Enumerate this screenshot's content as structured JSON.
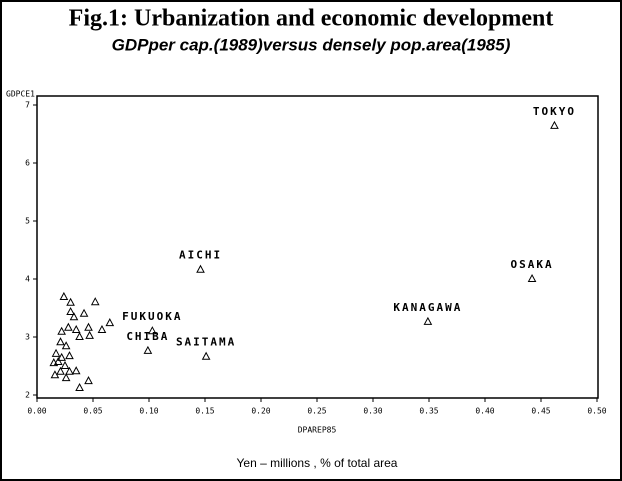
{
  "chart_data": {
    "type": "scatter",
    "title": "Fig.1: Urbanization and economic development",
    "subtitle": "GDPper cap.(1989)versus densely pop.area(1985)",
    "x_label": "DPAREP85",
    "y_label": "GDPCE1",
    "caption": "Yen – millions , % of total area",
    "marker": "triangle",
    "color": "#000000",
    "x": [
      0.462,
      0.442,
      0.349,
      0.146,
      0.151,
      0.099,
      0.103,
      0.024,
      0.03,
      0.052,
      0.03,
      0.033,
      0.042,
      0.065,
      0.058,
      0.046,
      0.035,
      0.028,
      0.022,
      0.038,
      0.047,
      0.021,
      0.026,
      0.017,
      0.022,
      0.029,
      0.019,
      0.025,
      0.021,
      0.029,
      0.035,
      0.026,
      0.046,
      0.038,
      0.015,
      0.016
    ],
    "y": [
      6.64,
      4.0,
      3.26,
      4.16,
      2.66,
      2.76,
      3.1,
      3.69,
      3.59,
      3.6,
      3.43,
      3.34,
      3.4,
      3.24,
      3.12,
      3.16,
      3.12,
      3.16,
      3.09,
      3.0,
      3.02,
      2.91,
      2.84,
      2.71,
      2.64,
      2.67,
      2.57,
      2.5,
      2.4,
      2.4,
      2.41,
      2.29,
      2.24,
      2.12,
      2.55,
      2.34
    ],
    "point_labels": [
      "TOKYO",
      "OSAKA",
      "KANAGAWA",
      "AICHI",
      "SAITAMA",
      "CHIBA",
      "FUKUOKA",
      null,
      null,
      null,
      null,
      null,
      null,
      null,
      null,
      null,
      null,
      null,
      null,
      null,
      null,
      null,
      null,
      null,
      null,
      null,
      null,
      null,
      null,
      null,
      null,
      null,
      null,
      null,
      null,
      null
    ],
    "xlim": [
      0,
      0.5
    ],
    "ylim": [
      2,
      7
    ],
    "xticks": [
      {
        "value": 0,
        "label": "0.00"
      },
      {
        "value": 0.05,
        "label": "0.05"
      },
      {
        "value": 0.1,
        "label": "0.10"
      },
      {
        "value": 0.15,
        "label": "0.15"
      },
      {
        "value": 0.2,
        "label": "0.20"
      },
      {
        "value": 0.25,
        "label": "0.25"
      },
      {
        "value": 0.3,
        "label": "0.30"
      },
      {
        "value": 0.35,
        "label": "0.35"
      },
      {
        "value": 0.4,
        "label": "0.40"
      },
      {
        "value": 0.45,
        "label": "0.45"
      },
      {
        "value": 0.5,
        "label": "0.50"
      }
    ],
    "yticks": [
      2,
      3,
      4,
      5,
      6,
      7
    ]
  }
}
